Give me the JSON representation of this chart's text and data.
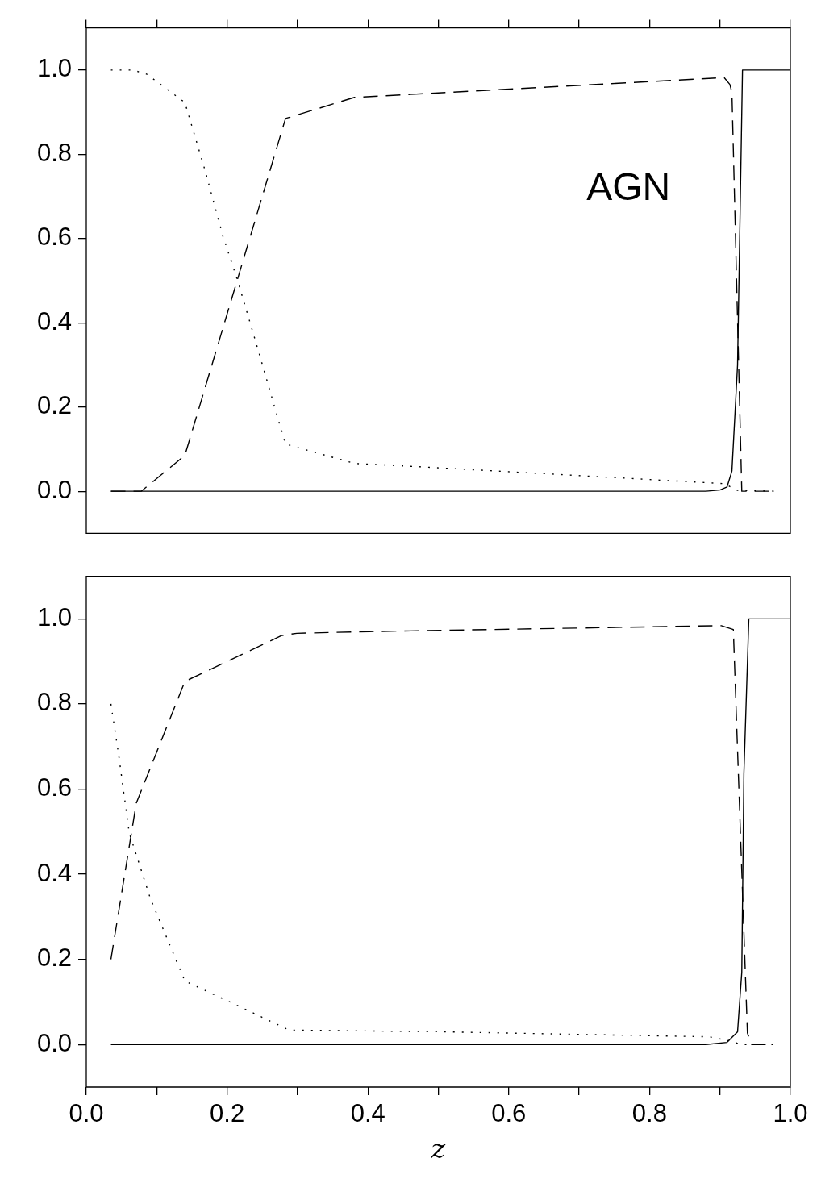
{
  "chart_data": [
    {
      "type": "line",
      "annotations": [
        "AGN"
      ],
      "xlim": [
        0,
        1
      ],
      "ylim": [
        -0.1,
        1.1
      ],
      "xticks": [
        {
          "value": 0,
          "label": null
        },
        {
          "value": 0.1,
          "label": null
        },
        {
          "value": 0.2,
          "label": null
        },
        {
          "value": 0.3,
          "label": null
        },
        {
          "value": 0.4,
          "label": null
        },
        {
          "value": 0.5,
          "label": null
        },
        {
          "value": 0.6,
          "label": null
        },
        {
          "value": 0.7,
          "label": null
        },
        {
          "value": 0.8,
          "label": null
        },
        {
          "value": 0.9,
          "label": null
        },
        {
          "value": 1,
          "label": null
        }
      ],
      "yticks": [
        {
          "value": 0,
          "label": "0.0"
        },
        {
          "value": 0.2,
          "label": "0.2"
        },
        {
          "value": 0.4,
          "label": "0.4"
        },
        {
          "value": 0.6,
          "label": "0.6"
        },
        {
          "value": 0.8,
          "label": "0.8"
        },
        {
          "value": 1,
          "label": "1.0"
        }
      ],
      "tick_labels": "y",
      "grid": false,
      "legend": false,
      "marker": "none",
      "series": [
        {
          "color": "#000000",
          "line_style": "solid",
          "x": [
            0.035,
            0.88,
            0.9,
            0.91,
            0.917,
            0.925,
            0.932,
            1.0
          ],
          "values": [
            0,
            0,
            0.003,
            0.01,
            0.048,
            0.3,
            1.0,
            1.0
          ]
        },
        {
          "color": "#000000",
          "line_style": "dashed",
          "x": [
            0.035,
            0.078,
            0.14,
            0.283,
            0.381,
            0.906,
            0.914,
            0.917,
            0.931,
            0.98
          ],
          "values": [
            0,
            0,
            0.085,
            0.885,
            0.935,
            0.982,
            0.966,
            0.947,
            0,
            0
          ]
        },
        {
          "color": "#000000",
          "line_style": "dotted",
          "x": [
            0.035,
            0.066,
            0.086,
            0.14,
            0.169,
            0.194,
            0.215,
            0.244,
            0.268,
            0.283,
            0.381,
            0.486,
            0.906,
            0.925,
            0.98
          ],
          "values": [
            1.0,
            1.0,
            0.99,
            0.923,
            0.76,
            0.606,
            0.5,
            0.336,
            0.197,
            0.112,
            0.066,
            0.057,
            0.018,
            0.002,
            0
          ]
        }
      ]
    },
    {
      "type": "line",
      "xlabel": "z",
      "xlim": [
        0,
        1
      ],
      "ylim": [
        -0.1,
        1.1
      ],
      "xticks": [
        {
          "value": 0,
          "label": "0.0"
        },
        {
          "value": 0.1,
          "label": null
        },
        {
          "value": 0.2,
          "label": "0.2"
        },
        {
          "value": 0.3,
          "label": null
        },
        {
          "value": 0.4,
          "label": "0.4"
        },
        {
          "value": 0.5,
          "label": null
        },
        {
          "value": 0.6,
          "label": "0.6"
        },
        {
          "value": 0.7,
          "label": null
        },
        {
          "value": 0.8,
          "label": "0.8"
        },
        {
          "value": 0.9,
          "label": null
        },
        {
          "value": 1,
          "label": "1.0"
        }
      ],
      "yticks": [
        {
          "value": 0,
          "label": "0.0"
        },
        {
          "value": 0.2,
          "label": "0.2"
        },
        {
          "value": 0.4,
          "label": "0.4"
        },
        {
          "value": 0.6,
          "label": "0.6"
        },
        {
          "value": 0.8,
          "label": "0.8"
        },
        {
          "value": 1,
          "label": "1.0"
        }
      ],
      "grid": false,
      "legend": false,
      "marker": "none",
      "series": [
        {
          "color": "#000000",
          "line_style": "solid",
          "x": [
            0.035,
            0.88,
            0.91,
            0.925,
            0.931,
            0.934,
            0.941,
            1.0
          ],
          "values": [
            0,
            0,
            0.005,
            0.03,
            0.17,
            0.636,
            1.0,
            1.0
          ]
        },
        {
          "color": "#000000",
          "line_style": "dashed",
          "x": [
            0.035,
            0.071,
            0.14,
            0.278,
            0.299,
            0.402,
            0.902,
            0.919,
            0.939,
            0.945,
            0.975
          ],
          "values": [
            0.2,
            0.567,
            0.853,
            0.961,
            0.966,
            0.97,
            0.984,
            0.975,
            0.027,
            0,
            0
          ]
        },
        {
          "color": "#000000",
          "line_style": "dotted",
          "x": [
            0.035,
            0.046,
            0.061,
            0.091,
            0.14,
            0.209,
            0.288,
            0.5,
            0.885,
            0.915,
            0.93,
            0.975
          ],
          "values": [
            0.8,
            0.68,
            0.497,
            0.343,
            0.149,
            0.096,
            0.034,
            0.03,
            0.018,
            0.008,
            0,
            0
          ]
        }
      ]
    }
  ]
}
